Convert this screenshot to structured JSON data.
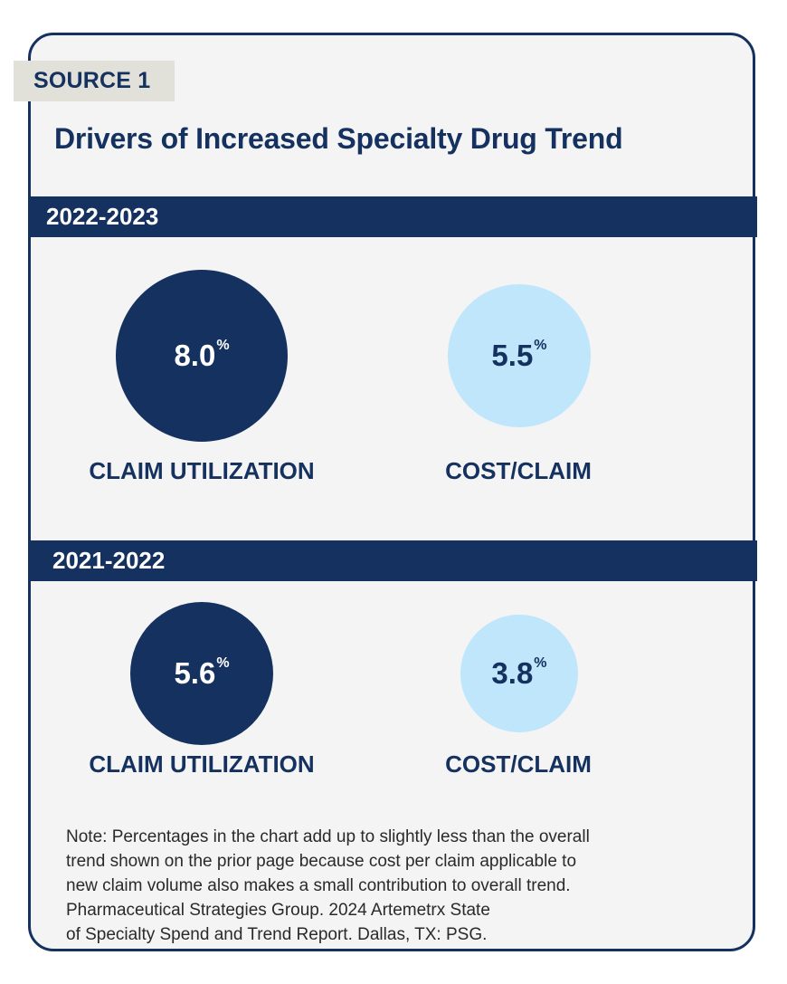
{
  "source_label": "SOURCE 1",
  "chart_data": {
    "type": "bubble",
    "title": "Drivers of Increased Specialty Drug Trend",
    "unit": "%",
    "colors": {
      "claim_utilization": "#14315f",
      "cost_per_claim": "#bfe6fb",
      "band": "#14315f"
    },
    "periods": [
      {
        "period": "2022-2023",
        "drivers": [
          {
            "label": "CLAIM UTILIZATION",
            "value": 8.0,
            "value_text": "8.0"
          },
          {
            "label": "COST/CLAIM",
            "value": 5.5,
            "value_text": "5.5"
          }
        ]
      },
      {
        "period": "2021-2022",
        "drivers": [
          {
            "label": "CLAIM UTILIZATION",
            "value": 5.6,
            "value_text": "5.6"
          },
          {
            "label": "COST/CLAIM",
            "value": 3.8,
            "value_text": "3.8"
          }
        ]
      }
    ]
  },
  "note_lines": [
    "Note: Percentages in the chart add up to slightly less than the overall",
    "trend shown on the prior page because cost per claim applicable to",
    "new claim volume also makes a small contribution to overall trend.",
    "Pharmaceutical Strategies Group. 2024 Artemetrx State",
    "of Specialty Spend and Trend Report. Dallas, TX: PSG."
  ]
}
